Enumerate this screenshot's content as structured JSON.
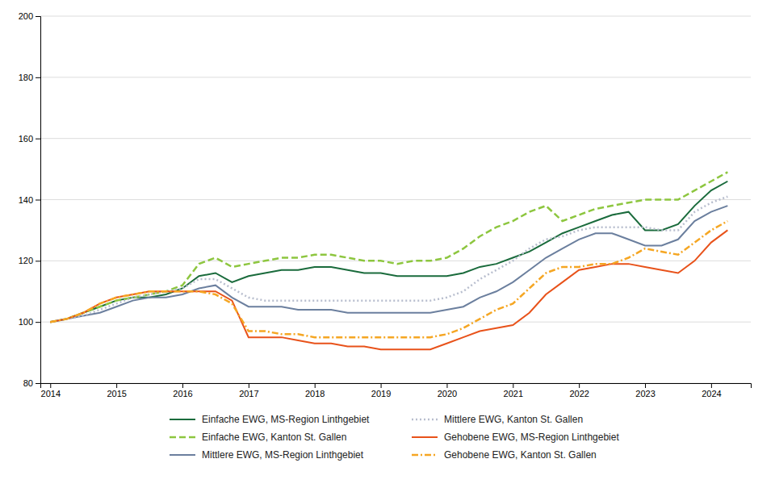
{
  "chart_data": {
    "type": "line",
    "x": [
      2014.0,
      2014.25,
      2014.5,
      2014.75,
      2015.0,
      2015.25,
      2015.5,
      2015.75,
      2016.0,
      2016.25,
      2016.5,
      2016.75,
      2017.0,
      2017.25,
      2017.5,
      2017.75,
      2018.0,
      2018.25,
      2018.5,
      2018.75,
      2019.0,
      2019.25,
      2019.5,
      2019.75,
      2020.0,
      2020.25,
      2020.5,
      2020.75,
      2021.0,
      2021.25,
      2021.5,
      2021.75,
      2022.0,
      2022.25,
      2022.5,
      2022.75,
      2023.0,
      2023.25,
      2023.5,
      2023.75,
      2024.0,
      2024.25
    ],
    "series": [
      {
        "name": "Einfache EWG, MS-Region Linthgebiet",
        "color": "#1a6b3c",
        "line_style": "solid",
        "values": [
          100,
          101,
          103,
          105,
          107,
          108,
          108,
          109,
          111,
          115,
          116,
          113,
          115,
          116,
          117,
          117,
          118,
          118,
          117,
          116,
          116,
          115,
          115,
          115,
          115,
          116,
          118,
          119,
          121,
          123,
          126,
          129,
          131,
          133,
          135,
          136,
          130,
          130,
          132,
          138,
          143,
          146
        ]
      },
      {
        "name": "Einfache EWG, Kanton St. Gallen",
        "color": "#8dc63f",
        "line_style": "dashed",
        "values": [
          100,
          101,
          103,
          105,
          107,
          108,
          109,
          110,
          112,
          119,
          121,
          118,
          119,
          120,
          121,
          121,
          122,
          122,
          121,
          120,
          120,
          119,
          120,
          120,
          121,
          124,
          128,
          131,
          133,
          136,
          138,
          133,
          135,
          137,
          138,
          139,
          140,
          140,
          140,
          143,
          146,
          149
        ]
      },
      {
        "name": "Mittlere EWG, MS-Region Linthgebiet",
        "color": "#6b7f9e",
        "line_style": "solid",
        "values": [
          100,
          101,
          102,
          103,
          105,
          107,
          108,
          108,
          109,
          111,
          112,
          108,
          105,
          105,
          105,
          104,
          104,
          104,
          103,
          103,
          103,
          103,
          103,
          103,
          104,
          105,
          108,
          110,
          113,
          117,
          121,
          124,
          127,
          129,
          129,
          127,
          125,
          125,
          127,
          133,
          136,
          138
        ]
      },
      {
        "name": "Mittlere EWG, Kanton St. Gallen",
        "color": "#b8bece",
        "line_style": "dotted",
        "values": [
          100,
          101,
          102,
          104,
          106,
          108,
          109,
          110,
          111,
          114,
          114,
          111,
          108,
          107,
          107,
          107,
          107,
          107,
          107,
          107,
          107,
          107,
          107,
          107,
          108,
          110,
          114,
          117,
          120,
          124,
          127,
          128,
          130,
          131,
          131,
          131,
          131,
          130,
          130,
          136,
          139,
          141
        ]
      },
      {
        "name": "Gehobene EWG, MS-Region Linthgebiet",
        "color": "#e8521a",
        "line_style": "solid",
        "values": [
          100,
          101,
          103,
          106,
          108,
          109,
          110,
          110,
          110,
          110,
          110,
          107,
          95,
          95,
          95,
          94,
          93,
          93,
          92,
          92,
          91,
          91,
          91,
          91,
          93,
          95,
          97,
          98,
          99,
          103,
          109,
          113,
          117,
          118,
          119,
          119,
          118,
          117,
          116,
          120,
          126,
          130
        ]
      },
      {
        "name": "Gehobene EWG, Kanton St. Gallen",
        "color": "#f5a623",
        "line_style": "dashdot",
        "values": [
          100,
          101,
          103,
          106,
          108,
          109,
          110,
          110,
          110,
          110,
          109,
          106,
          97,
          97,
          96,
          96,
          95,
          95,
          95,
          95,
          95,
          95,
          95,
          95,
          96,
          98,
          101,
          104,
          106,
          111,
          116,
          118,
          118,
          119,
          119,
          121,
          124,
          123,
          122,
          126,
          130,
          133
        ]
      }
    ],
    "xlim": [
      2013.85,
      2024.6
    ],
    "xticks": [
      2014,
      2015,
      2016,
      2017,
      2018,
      2019,
      2020,
      2021,
      2022,
      2023,
      2024
    ],
    "ylim": [
      80,
      200
    ],
    "yticks": [
      80,
      100,
      120,
      140,
      160,
      180,
      200
    ],
    "grid": true
  }
}
